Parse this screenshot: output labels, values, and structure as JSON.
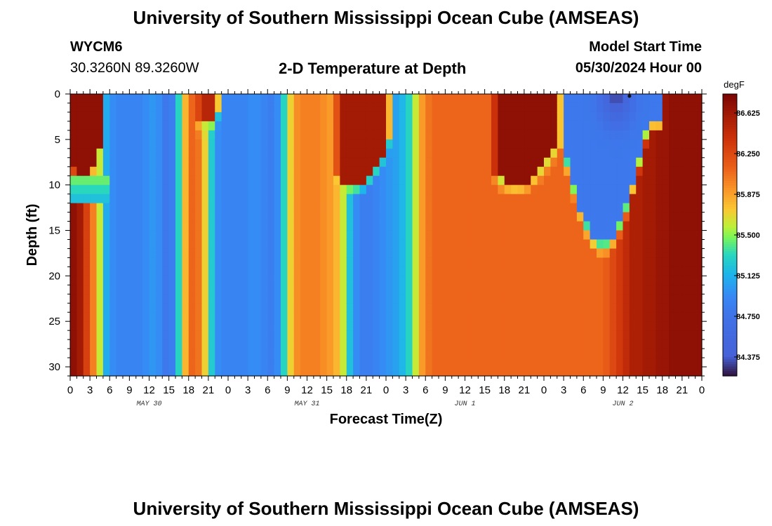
{
  "header": {
    "title_top": "University of Southern Mississippi Ocean Cube (AMSEAS)",
    "title_bottom": "University of Southern Mississippi Ocean Cube (AMSEAS)",
    "station": "WYCM6",
    "coords": "30.3260N  89.3260W",
    "plot_title": "2-D Temperature at Depth",
    "model_start_label": "Model Start Time",
    "model_start_value": "05/30/2024 Hour 00"
  },
  "chart_data": {
    "type": "heatmap",
    "title": "2-D Temperature at Depth",
    "xlabel": "Forecast Time(Z)",
    "ylabel": "Depth (ft)",
    "units": "degF",
    "x_range_hours": [
      0,
      96
    ],
    "y_range_ft": [
      0,
      31
    ],
    "x_tick_labels": [
      "0",
      "3",
      "6",
      "9",
      "12",
      "15",
      "18",
      "21",
      "0",
      "3",
      "6",
      "9",
      "12",
      "15",
      "18",
      "21",
      "0",
      "3",
      "6",
      "9",
      "12",
      "15",
      "18",
      "21",
      "0",
      "3",
      "6",
      "9",
      "12",
      "15",
      "18",
      "21",
      "0"
    ],
    "y_ticks": [
      0,
      5,
      10,
      15,
      20,
      25,
      30
    ],
    "y_tick_labels": [
      "0",
      "5",
      "10",
      "15",
      "20",
      "25",
      "30"
    ],
    "date_labels": [
      {
        "text": "MAY 30",
        "hour": 12
      },
      {
        "text": "MAY 31",
        "hour": 36
      },
      {
        "text": "JUN 1",
        "hour": 60
      },
      {
        "text": "JUN 2",
        "hour": 84
      }
    ],
    "colorbar": {
      "label": "degF",
      "min": 84.2,
      "max": 86.8,
      "ticks": [
        86.625,
        86.25,
        85.875,
        85.5,
        85.125,
        84.75,
        84.375
      ],
      "tick_labels": [
        "86.625",
        "86.250",
        "85.875",
        "85.500",
        "85.125",
        "84.750",
        "84.375"
      ]
    },
    "deep_profile_degF": [
      86.8,
      86.7,
      86.6,
      86.3,
      86.0,
      85.6,
      85.1,
      84.95,
      84.9,
      84.9,
      84.9,
      84.9,
      84.95,
      85.0,
      84.95,
      84.8,
      84.85,
      85.3,
      85.8,
      86.1,
      86.05,
      85.7,
      85.25,
      84.95,
      84.9,
      84.9,
      84.9,
      84.9,
      84.95,
      84.95,
      84.9,
      84.85,
      84.95,
      85.3,
      85.7,
      85.95,
      86.0,
      86.0,
      86.0,
      85.95,
      85.9,
      85.8,
      85.6,
      85.2,
      84.95,
      84.85,
      84.85,
      84.9,
      84.95,
      85.0,
      85.05,
      85.15,
      85.3,
      85.6,
      85.9,
      86.05,
      86.1,
      86.1,
      86.1,
      86.1,
      86.1,
      86.1,
      86.1,
      86.1,
      86.1,
      86.1,
      86.1,
      86.1,
      86.1,
      86.1,
      86.1,
      86.1,
      86.1,
      86.1,
      86.1,
      86.1,
      86.1,
      86.1,
      86.1,
      86.1,
      86.1,
      86.1,
      86.15,
      86.25,
      86.35,
      86.45,
      86.55,
      86.55,
      86.6,
      86.6,
      86.65,
      86.65,
      86.7,
      86.7,
      86.7,
      86.7,
      86.7
    ],
    "surface_warm_features": [
      {
        "start_hour": 0,
        "end_hour": 5.5,
        "bottom_ft": 9,
        "value": 86.7
      },
      {
        "start_hour": 19,
        "end_hour": 23,
        "bottom_ft": 3.5,
        "value": 86.5
      },
      {
        "start_hour": 40,
        "end_hour": 49,
        "bottom_ft": 10,
        "value": 86.6
      },
      {
        "start_hour": 64,
        "end_hour": 75,
        "bottom_ft": 10,
        "value": 86.7
      }
    ],
    "cold_intrusion": {
      "start_hour": 74,
      "end_hour": 90,
      "bottom_ft": 16.5,
      "core_value": 84.3,
      "value": 84.8
    }
  }
}
